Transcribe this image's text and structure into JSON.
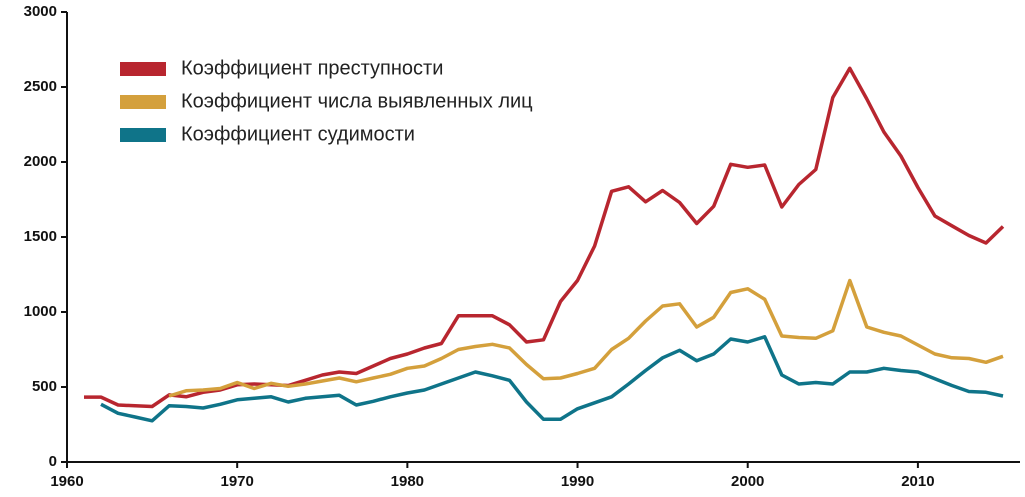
{
  "chart_data": {
    "type": "line",
    "x": [
      1961,
      1962,
      1963,
      1964,
      1965,
      1966,
      1967,
      1968,
      1969,
      1970,
      1971,
      1972,
      1973,
      1974,
      1975,
      1976,
      1977,
      1978,
      1979,
      1980,
      1981,
      1982,
      1983,
      1984,
      1985,
      1986,
      1987,
      1988,
      1989,
      1990,
      1991,
      1992,
      1993,
      1994,
      1995,
      1996,
      1997,
      1998,
      1999,
      2000,
      2001,
      2002,
      2003,
      2004,
      2005,
      2006,
      2007,
      2008,
      2009,
      2010,
      2011,
      2012,
      2013,
      2014,
      2015
    ],
    "series": [
      {
        "name": "Коэффициент преступности",
        "color": "#b8262f",
        "values": [
          433,
          433,
          380,
          375,
          370,
          447,
          435,
          465,
          480,
          515,
          520,
          515,
          510,
          545,
          580,
          600,
          590,
          640,
          690,
          720,
          760,
          790,
          975,
          975,
          975,
          915,
          800,
          815,
          1070,
          1210,
          1440,
          1805,
          1835,
          1735,
          1810,
          1730,
          1590,
          1705,
          1985,
          1965,
          1980,
          1700,
          1850,
          1950,
          2430,
          2625,
          2420,
          2200,
          2040,
          1830,
          1640,
          1575,
          1510,
          1460,
          1570
        ]
      },
      {
        "name": "Коэффициент числа выявленных лиц",
        "color": "#d4a03c",
        "values": [
          null,
          null,
          null,
          null,
          null,
          440,
          475,
          480,
          490,
          530,
          490,
          525,
          505,
          520,
          540,
          560,
          535,
          560,
          585,
          625,
          640,
          690,
          750,
          770,
          785,
          760,
          650,
          555,
          560,
          590,
          625,
          750,
          825,
          940,
          1040,
          1055,
          900,
          965,
          1130,
          1155,
          1085,
          840,
          830,
          825,
          875,
          1210,
          900,
          865,
          840,
          780,
          720,
          695,
          690,
          665,
          705
        ]
      },
      {
        "name": "Коэффициент судимости",
        "color": "#0f7489",
        "values": [
          null,
          385,
          325,
          300,
          275,
          375,
          370,
          360,
          385,
          415,
          425,
          435,
          400,
          425,
          435,
          445,
          380,
          405,
          435,
          460,
          480,
          520,
          560,
          600,
          575,
          545,
          400,
          285,
          285,
          355,
          395,
          435,
          520,
          610,
          695,
          745,
          675,
          720,
          820,
          800,
          835,
          580,
          520,
          530,
          520,
          600,
          600,
          625,
          610,
          600,
          555,
          510,
          470,
          465,
          440
        ]
      }
    ],
    "xlim": [
      1960,
      2016
    ],
    "xticks": [
      1960,
      1970,
      1980,
      1990,
      2000,
      2010
    ],
    "ylim": [
      0,
      3000
    ],
    "yticks": [
      0,
      500,
      1000,
      1500,
      2000,
      2500,
      3000
    ]
  }
}
